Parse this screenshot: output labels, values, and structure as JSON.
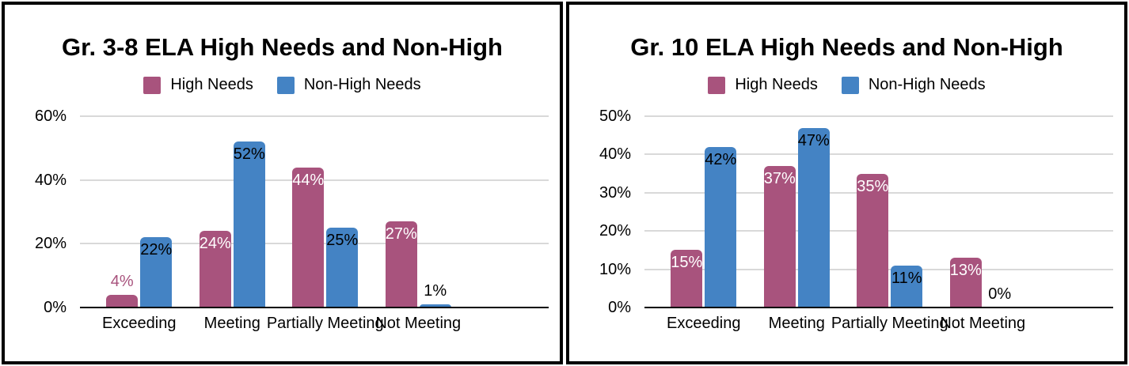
{
  "chart_data": [
    {
      "type": "bar",
      "title": "Gr. 3-8 ELA High Needs and Non-High",
      "categories": [
        "Exceeding",
        "Meeting",
        "Partially Meeting",
        "Not Meeting"
      ],
      "series": [
        {
          "name": "High Needs",
          "color": "#a8537d",
          "values": [
            4,
            24,
            44,
            27
          ],
          "data_labels": [
            {
              "text": "4%",
              "placement": "above",
              "color": "#a8537d"
            },
            {
              "text": "24%",
              "placement": "inside",
              "color": "#ffffff"
            },
            {
              "text": "44%",
              "placement": "inside",
              "color": "#ffffff"
            },
            {
              "text": "27%",
              "placement": "inside",
              "color": "#ffffff"
            }
          ]
        },
        {
          "name": "Non-High Needs",
          "color": "#4483c4",
          "values": [
            22,
            52,
            25,
            1
          ],
          "data_labels": [
            {
              "text": "22%",
              "placement": "inside",
              "color": "#000000"
            },
            {
              "text": "52%",
              "placement": "inside",
              "color": "#000000"
            },
            {
              "text": "25%",
              "placement": "inside",
              "color": "#000000"
            },
            {
              "text": "1%",
              "placement": "above",
              "color": "#000000"
            }
          ]
        }
      ],
      "ylim": [
        0,
        60
      ],
      "yticks": [
        {
          "value": 0,
          "label": "0%"
        },
        {
          "value": 20,
          "label": "20%"
        },
        {
          "value": 40,
          "label": "40%"
        },
        {
          "value": 60,
          "label": "60%"
        }
      ],
      "xlabel": "",
      "ylabel": "",
      "grid": true,
      "legend_position": "top"
    },
    {
      "type": "bar",
      "title": "Gr. 10 ELA High Needs and Non-High",
      "categories": [
        "Exceeding",
        "Meeting",
        "Partially Meeting",
        "Not Meeting"
      ],
      "series": [
        {
          "name": "High Needs",
          "color": "#a8537d",
          "values": [
            15,
            37,
            35,
            13
          ],
          "data_labels": [
            {
              "text": "15%",
              "placement": "inside",
              "color": "#ffffff"
            },
            {
              "text": "37%",
              "placement": "inside",
              "color": "#ffffff"
            },
            {
              "text": "35%",
              "placement": "inside",
              "color": "#ffffff"
            },
            {
              "text": "13%",
              "placement": "inside",
              "color": "#ffffff"
            }
          ]
        },
        {
          "name": "Non-High Needs",
          "color": "#4483c4",
          "values": [
            42,
            47,
            11,
            0
          ],
          "data_labels": [
            {
              "text": "42%",
              "placement": "inside",
              "color": "#000000"
            },
            {
              "text": "47%",
              "placement": "inside",
              "color": "#000000"
            },
            {
              "text": "11%",
              "placement": "inside",
              "color": "#000000"
            },
            {
              "text": "0%",
              "placement": "above",
              "color": "#000000"
            }
          ]
        }
      ],
      "ylim": [
        0,
        50
      ],
      "yticks": [
        {
          "value": 0,
          "label": "0%"
        },
        {
          "value": 10,
          "label": "10%"
        },
        {
          "value": 20,
          "label": "20%"
        },
        {
          "value": 30,
          "label": "30%"
        },
        {
          "value": 40,
          "label": "40%"
        },
        {
          "value": 50,
          "label": "50%"
        }
      ],
      "xlabel": "",
      "ylabel": "",
      "grid": true,
      "legend_position": "top"
    }
  ],
  "colors": {
    "high_needs": "#a8537d",
    "non_high_needs": "#4483c4",
    "gridline": "#d9d9d9",
    "axis": "#000000",
    "background": "#ffffff"
  }
}
